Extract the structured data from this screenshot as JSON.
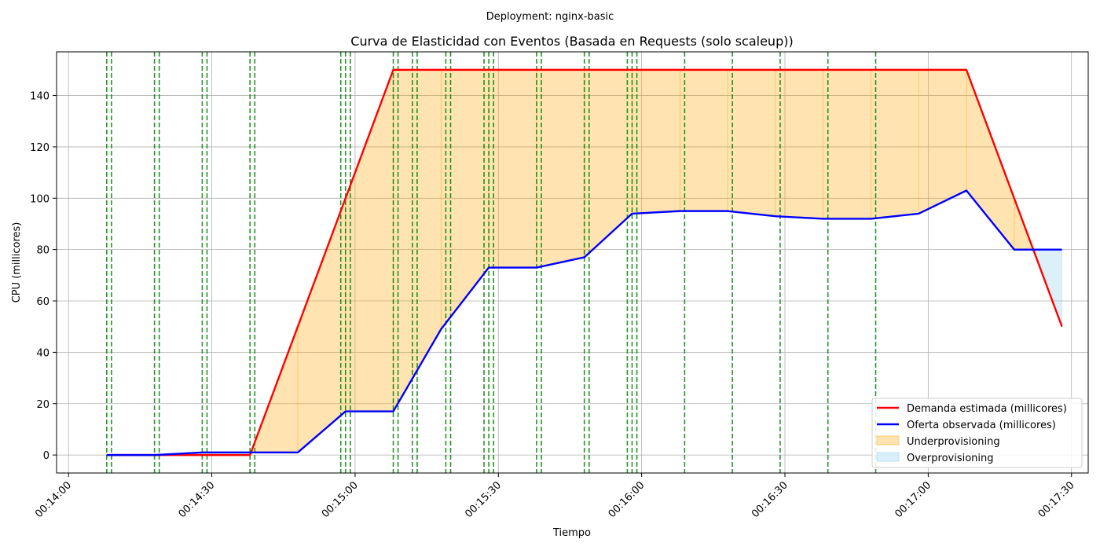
{
  "chart_data": {
    "type": "line",
    "suptitle": "Deployment: nginx-basic",
    "title": "Curva de Elasticidad con Eventos (Basada en Requests (solo scaleup))",
    "xlabel": "Tiempo",
    "ylabel": "CPU (millicores)",
    "xlim": [
      "00:14:00",
      "00:17:30"
    ],
    "ylim": [
      -7,
      157
    ],
    "x_ticks": [
      "00:14:00",
      "00:14:30",
      "00:15:00",
      "00:15:30",
      "00:16:00",
      "00:16:30",
      "00:17:00",
      "00:17:30"
    ],
    "y_ticks": [
      0,
      20,
      40,
      60,
      80,
      100,
      120,
      140
    ],
    "grid": true,
    "legend_position": "lower-right",
    "series": [
      {
        "name": "Demanda estimada (millicores)",
        "color": "#ff0000",
        "x": [
          "00:14:08",
          "00:14:18",
          "00:14:28",
          "00:14:38",
          "00:14:48",
          "00:14:58",
          "00:15:08",
          "00:15:18",
          "00:15:28",
          "00:15:38",
          "00:15:48",
          "00:15:58",
          "00:16:08",
          "00:16:18",
          "00:16:28",
          "00:16:38",
          "00:16:48",
          "00:16:58",
          "00:17:08",
          "00:17:18",
          "00:17:28"
        ],
        "values": [
          0,
          0,
          0,
          0,
          50,
          100,
          150,
          150,
          150,
          150,
          150,
          150,
          150,
          150,
          150,
          150,
          150,
          150,
          150,
          100,
          50
        ]
      },
      {
        "name": "Oferta observada (millicores)",
        "color": "#0000ff",
        "x": [
          "00:14:08",
          "00:14:18",
          "00:14:28",
          "00:14:38",
          "00:14:48",
          "00:14:58",
          "00:15:08",
          "00:15:18",
          "00:15:28",
          "00:15:38",
          "00:15:48",
          "00:15:58",
          "00:16:08",
          "00:16:18",
          "00:16:28",
          "00:16:38",
          "00:16:48",
          "00:16:58",
          "00:17:08",
          "00:17:18",
          "00:17:28"
        ],
        "values": [
          0,
          0,
          1,
          1,
          1,
          17,
          17,
          49,
          73,
          73,
          77,
          94,
          95,
          95,
          93,
          92,
          92,
          94,
          103,
          80,
          80
        ]
      }
    ],
    "areas": [
      {
        "name": "Underprovisioning",
        "color": "#ffa500",
        "rule": "demand > supply"
      },
      {
        "name": "Overprovisioning",
        "color": "#87ceeb",
        "rule": "supply > demand"
      }
    ],
    "event_lines": {
      "color": "#008000",
      "style": "dashed",
      "x": [
        "00:14:08",
        "00:14:09",
        "00:14:18",
        "00:14:19",
        "00:14:28",
        "00:14:29",
        "00:14:38",
        "00:14:39",
        "00:14:57",
        "00:14:58",
        "00:14:59",
        "00:15:08",
        "00:15:09",
        "00:15:12",
        "00:15:13",
        "00:15:19",
        "00:15:20",
        "00:15:27",
        "00:15:28",
        "00:15:29",
        "00:15:38",
        "00:15:39",
        "00:15:48",
        "00:15:49",
        "00:15:57",
        "00:15:58",
        "00:15:59",
        "00:16:09",
        "00:16:19",
        "00:16:29",
        "00:16:39",
        "00:16:49"
      ]
    }
  }
}
